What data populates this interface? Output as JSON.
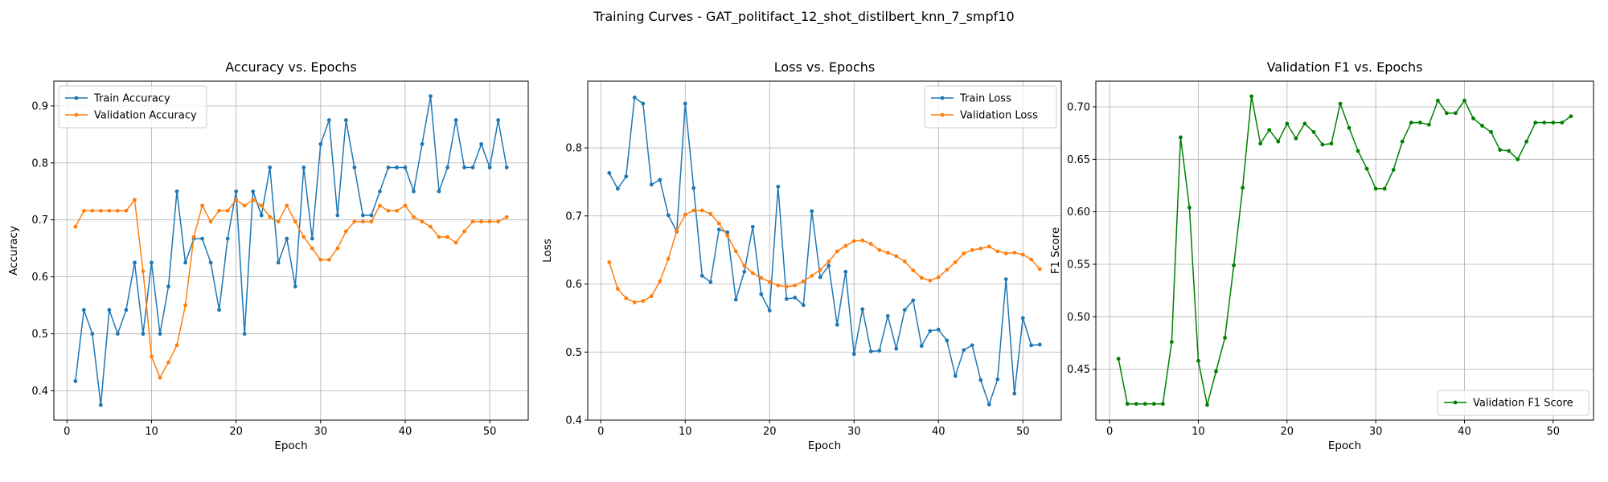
{
  "figure": {
    "suptitle": "Training Curves - GAT_politifact_12_shot_distilbert_knn_7_smpf10"
  },
  "colors": {
    "blue": "#1f77b4",
    "orange": "#ff7f0e",
    "green": "#008000"
  },
  "chart_data": [
    {
      "type": "line",
      "title": "Accuracy vs. Epochs",
      "xlabel": "Epoch",
      "ylabel": "Accuracy",
      "xlim": [
        -1.55,
        54.55
      ],
      "ylim": [
        0.3485,
        0.9435
      ],
      "xticks": [
        0,
        10,
        20,
        30,
        40,
        50
      ],
      "yticks": [
        0.4,
        0.5,
        0.6,
        0.7,
        0.8,
        0.9
      ],
      "ytick_decimals": 1,
      "grid": true,
      "legend": "upper left",
      "x": [
        1,
        2,
        3,
        4,
        5,
        6,
        7,
        8,
        9,
        10,
        11,
        12,
        13,
        14,
        15,
        16,
        17,
        18,
        19,
        20,
        21,
        22,
        23,
        24,
        25,
        26,
        27,
        28,
        29,
        30,
        31,
        32,
        33,
        34,
        35,
        36,
        37,
        38,
        39,
        40,
        41,
        42,
        43,
        44,
        45,
        46,
        47,
        48,
        49,
        50,
        51,
        52
      ],
      "series": [
        {
          "name": "Train Accuracy",
          "color": "#1f77b4",
          "values": [
            0.417,
            0.542,
            0.5,
            0.375,
            0.542,
            0.5,
            0.542,
            0.625,
            0.5,
            0.625,
            0.5,
            0.583,
            0.75,
            0.625,
            0.667,
            0.667,
            0.625,
            0.542,
            0.667,
            0.75,
            0.5,
            0.75,
            0.708,
            0.792,
            0.625,
            0.667,
            0.583,
            0.792,
            0.667,
            0.833,
            0.875,
            0.708,
            0.875,
            0.792,
            0.708,
            0.708,
            0.75,
            0.792,
            0.792,
            0.792,
            0.75,
            0.833,
            0.917,
            0.75,
            0.792,
            0.875,
            0.792,
            0.792,
            0.833,
            0.792,
            0.875,
            0.792
          ]
        },
        {
          "name": "Validation Accuracy",
          "color": "#ff7f0e",
          "values": [
            0.688,
            0.716,
            0.716,
            0.716,
            0.716,
            0.716,
            0.716,
            0.735,
            0.61,
            0.46,
            0.423,
            0.45,
            0.48,
            0.55,
            0.67,
            0.725,
            0.697,
            0.716,
            0.716,
            0.735,
            0.725,
            0.735,
            0.725,
            0.705,
            0.697,
            0.725,
            0.697,
            0.67,
            0.65,
            0.63,
            0.63,
            0.65,
            0.68,
            0.697,
            0.697,
            0.697,
            0.725,
            0.716,
            0.716,
            0.725,
            0.705,
            0.697,
            0.688,
            0.67,
            0.67,
            0.66,
            0.68,
            0.697,
            0.697,
            0.697,
            0.697,
            0.705
          ]
        }
      ]
    },
    {
      "type": "line",
      "title": "Loss vs. Epochs",
      "xlabel": "Epoch",
      "ylabel": "Loss",
      "xlim": [
        -1.55,
        54.55
      ],
      "ylim": [
        0.4,
        0.898
      ],
      "xticks": [
        0,
        10,
        20,
        30,
        40,
        50
      ],
      "yticks": [
        0.4,
        0.5,
        0.6,
        0.7,
        0.8
      ],
      "ytick_decimals": 1,
      "grid": true,
      "legend": "upper right",
      "x": [
        1,
        2,
        3,
        4,
        5,
        6,
        7,
        8,
        9,
        10,
        11,
        12,
        13,
        14,
        15,
        16,
        17,
        18,
        19,
        20,
        21,
        22,
        23,
        24,
        25,
        26,
        27,
        28,
        29,
        30,
        31,
        32,
        33,
        34,
        35,
        36,
        37,
        38,
        39,
        40,
        41,
        42,
        43,
        44,
        45,
        46,
        47,
        48,
        49,
        50,
        51,
        52
      ],
      "series": [
        {
          "name": "Train Loss",
          "color": "#1f77b4",
          "values": [
            0.763,
            0.74,
            0.758,
            0.874,
            0.865,
            0.746,
            0.753,
            0.701,
            0.677,
            0.865,
            0.741,
            0.612,
            0.603,
            0.68,
            0.676,
            0.577,
            0.618,
            0.684,
            0.585,
            0.561,
            0.743,
            0.578,
            0.58,
            0.569,
            0.707,
            0.61,
            0.627,
            0.54,
            0.618,
            0.497,
            0.563,
            0.501,
            0.502,
            0.553,
            0.505,
            0.562,
            0.576,
            0.509,
            0.531,
            0.533,
            0.517,
            0.465,
            0.503,
            0.51,
            0.459,
            0.423,
            0.46,
            0.607,
            0.439,
            0.55,
            0.51,
            0.511
          ]
        },
        {
          "name": "Validation Loss",
          "color": "#ff7f0e",
          "values": [
            0.632,
            0.593,
            0.579,
            0.573,
            0.575,
            0.582,
            0.604,
            0.637,
            0.678,
            0.702,
            0.708,
            0.708,
            0.703,
            0.689,
            0.671,
            0.648,
            0.627,
            0.616,
            0.609,
            0.603,
            0.598,
            0.596,
            0.598,
            0.604,
            0.612,
            0.621,
            0.633,
            0.648,
            0.656,
            0.663,
            0.664,
            0.659,
            0.65,
            0.646,
            0.641,
            0.633,
            0.62,
            0.609,
            0.605,
            0.61,
            0.621,
            0.632,
            0.645,
            0.65,
            0.652,
            0.655,
            0.648,
            0.645,
            0.646,
            0.643,
            0.636,
            0.622
          ]
        }
      ]
    },
    {
      "type": "line",
      "title": "Validation F1 vs. Epochs",
      "xlabel": "Epoch",
      "ylabel": "F1 Score",
      "xlim": [
        -1.55,
        54.55
      ],
      "ylim": [
        0.4015,
        0.7245
      ],
      "xticks": [
        0,
        10,
        20,
        30,
        40,
        50
      ],
      "yticks": [
        0.45,
        0.5,
        0.55,
        0.6,
        0.65,
        0.7
      ],
      "ytick_decimals": 2,
      "grid": true,
      "legend": "lower right",
      "x": [
        1,
        2,
        3,
        4,
        5,
        6,
        7,
        8,
        9,
        10,
        11,
        12,
        13,
        14,
        15,
        16,
        17,
        18,
        19,
        20,
        21,
        22,
        23,
        24,
        25,
        26,
        27,
        28,
        29,
        30,
        31,
        32,
        33,
        34,
        35,
        36,
        37,
        38,
        39,
        40,
        41,
        42,
        43,
        44,
        45,
        46,
        47,
        48,
        49,
        50,
        51,
        52
      ],
      "series": [
        {
          "name": "Validation F1 Score",
          "color": "#008000",
          "values": [
            0.46,
            0.417,
            0.417,
            0.417,
            0.417,
            0.417,
            0.476,
            0.671,
            0.604,
            0.458,
            0.416,
            0.448,
            0.48,
            0.549,
            0.623,
            0.71,
            0.665,
            0.678,
            0.667,
            0.684,
            0.67,
            0.684,
            0.676,
            0.664,
            0.665,
            0.703,
            0.68,
            0.658,
            0.641,
            0.622,
            0.622,
            0.64,
            0.667,
            0.685,
            0.685,
            0.683,
            0.706,
            0.694,
            0.694,
            0.706,
            0.689,
            0.682,
            0.676,
            0.659,
            0.658,
            0.65,
            0.667,
            0.685,
            0.685,
            0.685,
            0.685,
            0.691
          ]
        }
      ]
    }
  ]
}
